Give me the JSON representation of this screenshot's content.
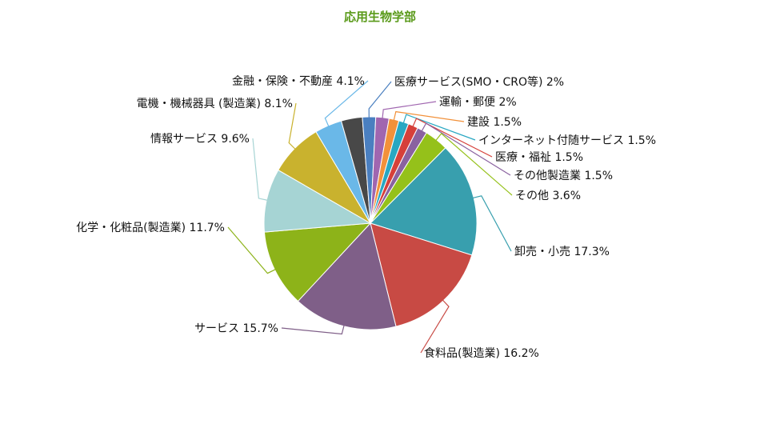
{
  "chart_data": {
    "type": "pie",
    "title": "応用生物学部",
    "title_color": "#5a9a1a",
    "slices": [
      {
        "label": "卸売・小売 17.3%",
        "value": 17.3,
        "color": "#389fae"
      },
      {
        "label": "食料品(製造業) 16.2%",
        "value": 16.2,
        "color": "#c84a44"
      },
      {
        "label": "サービス 15.7%",
        "value": 15.7,
        "color": "#7f5f88"
      },
      {
        "label": "化学・化粧品(製造業) 11.7%",
        "value": 11.7,
        "color": "#8db319"
      },
      {
        "label": "情報サービス 9.6%",
        "value": 9.6,
        "color": "#a6d4d4"
      },
      {
        "label": "電機・機械器具 (製造業) 8.1%",
        "value": 8.1,
        "color": "#c9b22e"
      },
      {
        "label": "金融・保険・不動産 4.1%",
        "value": 4.1,
        "color": "#6ab8e8"
      },
      {
        "label": "",
        "value": 3.2,
        "color": "#484848"
      },
      {
        "label": "医療サービス(SMO・CRO等) 2%",
        "value": 2.0,
        "color": "#4a7fc0"
      },
      {
        "label": "運輸・郵便 2%",
        "value": 2.0,
        "color": "#a066b0"
      },
      {
        "label": "建設 1.5%",
        "value": 1.5,
        "color": "#f2913a"
      },
      {
        "label": "インターネット付随サービス 1.5%",
        "value": 1.5,
        "color": "#29a7c2"
      },
      {
        "label": "医療・福祉 1.5%",
        "value": 1.5,
        "color": "#d6403a"
      },
      {
        "label": "その他製造業 1.5%",
        "value": 1.5,
        "color": "#8a62a0"
      },
      {
        "label": "その他 3.6%",
        "value": 3.6,
        "color": "#95c11a"
      }
    ],
    "legend": "none"
  }
}
